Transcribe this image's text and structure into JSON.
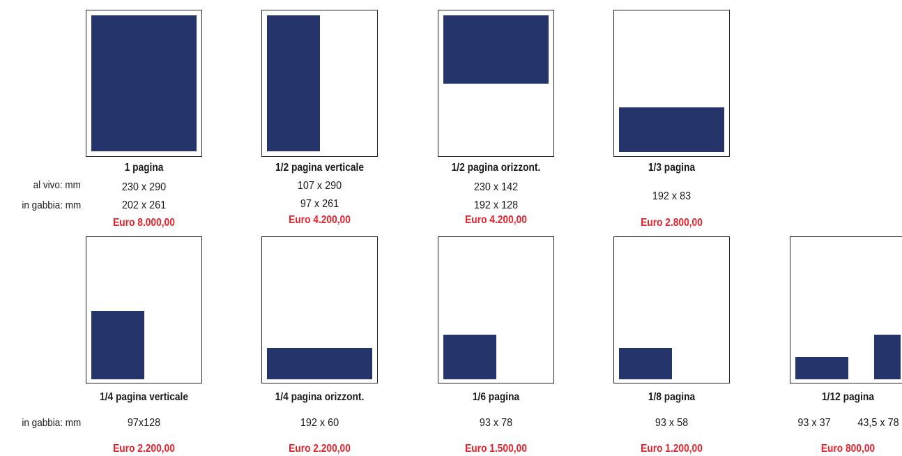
{
  "row_labels": {
    "al_vivo": "al vivo: mm",
    "in_gabbia": "in gabbia: mm",
    "in_gabbia_row2": "in gabbia: mm"
  },
  "formats": {
    "full": {
      "title": "1 pagina",
      "al_vivo": "230 x 290",
      "in_gabbia": "202 x 261",
      "price": "Euro 8.000,00"
    },
    "half_v": {
      "title": "1/2 pagina verticale",
      "al_vivo": "107 x 290",
      "in_gabbia": "97 x 261",
      "price": "Euro 4.200,00"
    },
    "half_h": {
      "title": "1/2 pagina orizzont.",
      "al_vivo": "230 x 142",
      "in_gabbia": "192 x 128",
      "price": "Euro 4.200,00"
    },
    "third": {
      "title": "1/3 pagina",
      "in_gabbia": "192 x 83",
      "price": "Euro 2.800,00"
    },
    "quarter_v": {
      "title": "1/4 pagina verticale",
      "in_gabbia": "97x128",
      "price": "Euro 2.200,00"
    },
    "quarter_h": {
      "title": "1/4 pagina orizzont.",
      "in_gabbia": "192 x 60",
      "price": "Euro 2.200,00"
    },
    "sixth": {
      "title": "1/6 pagina",
      "in_gabbia": "93 x 78",
      "price": "Euro 1.500,00"
    },
    "eighth": {
      "title": "1/8 pagina",
      "in_gabbia": "93 x 58",
      "price": "Euro 1.200,00"
    },
    "twelfth": {
      "title": "1/12 pagina",
      "in_gabbia_a": "93 x 37",
      "in_gabbia_b": "43,5 x 78",
      "price": "Euro 800,00"
    }
  },
  "colors": {
    "ad_fill": "#26346c",
    "price": "#e8202a",
    "frame": "#222222"
  }
}
